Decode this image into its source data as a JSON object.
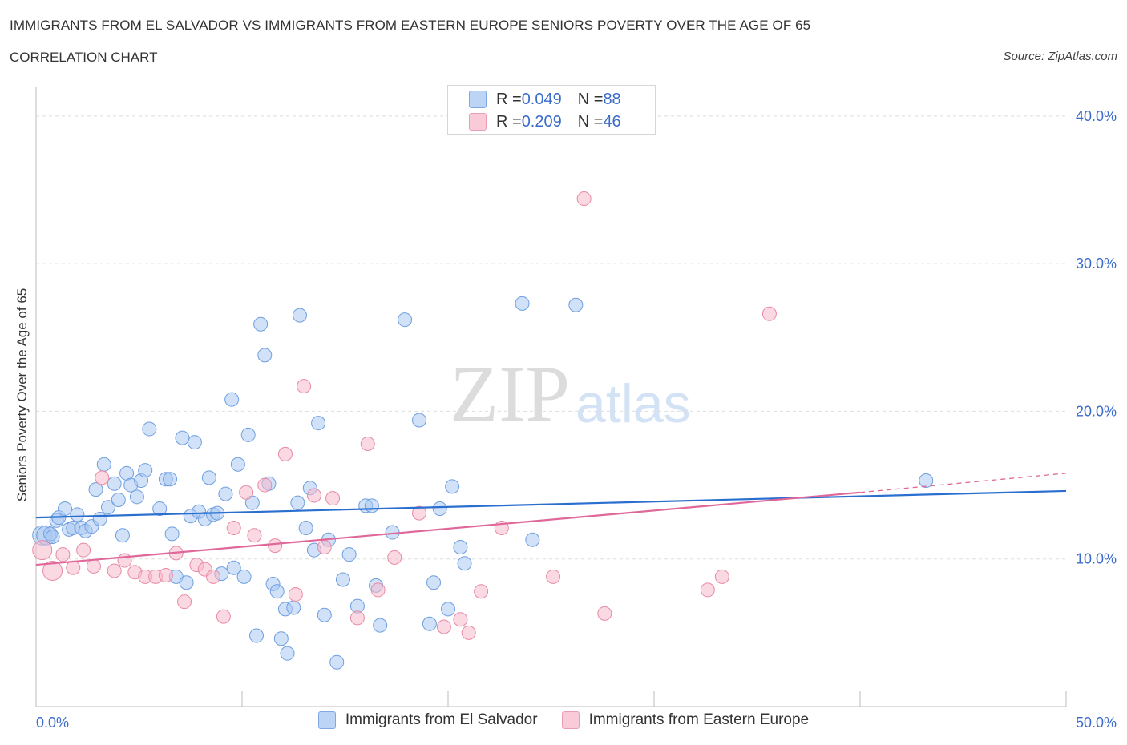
{
  "header": {
    "title": "IMMIGRANTS FROM EL SALVADOR VS IMMIGRANTS FROM EASTERN EUROPE SENIORS POVERTY OVER THE AGE OF 65",
    "subtitle": "CORRELATION CHART",
    "source": "Source: ZipAtlas.com"
  },
  "stats": [
    {
      "r_label": "R = ",
      "r_value": "0.049",
      "n_label": "N = ",
      "n_value": "88",
      "color": "#a9c8f2"
    },
    {
      "r_label": "R = ",
      "r_value": "0.209",
      "n_label": "N = ",
      "n_value": "46",
      "color": "#f5b9cb"
    }
  ],
  "watermark": {
    "zip": "ZIP",
    "atlas": "atlas"
  },
  "chart_data": {
    "type": "scatter",
    "title": "IMMIGRANTS FROM EL SALVADOR VS IMMIGRANTS FROM EASTERN EUROPE SENIORS POVERTY OVER THE AGE OF 65",
    "ylabel": "Seniors Poverty Over the Age of 65",
    "xlim": [
      0,
      50
    ],
    "ylim": [
      0,
      42
    ],
    "x_tick_labels": [
      "0.0%",
      "50.0%"
    ],
    "y_ticks": [
      10,
      20,
      30,
      40
    ],
    "y_tick_labels": [
      "10.0%",
      "20.0%",
      "30.0%",
      "40.0%"
    ],
    "grid": true,
    "legend_placement": "bottom-center",
    "series": [
      {
        "name": "Immigrants from El Salvador",
        "color": "#a9c8f2",
        "stroke": "#6f9fe0",
        "trend": {
          "x": [
            0,
            50
          ],
          "y": [
            12.8,
            14.6
          ],
          "color": "#2a6fd0"
        },
        "points": [
          [
            0.3,
            11.6
          ],
          [
            0.5,
            11.6
          ],
          [
            0.7,
            11.7
          ],
          [
            0.8,
            11.5
          ],
          [
            1.0,
            12.6
          ],
          [
            1.1,
            12.8
          ],
          [
            1.4,
            13.4
          ],
          [
            1.6,
            12.0
          ],
          [
            1.8,
            12.1
          ],
          [
            2.0,
            13.0
          ],
          [
            2.2,
            12.1
          ],
          [
            2.4,
            11.9
          ],
          [
            2.7,
            12.2
          ],
          [
            2.9,
            14.7
          ],
          [
            3.1,
            12.7
          ],
          [
            3.3,
            16.4
          ],
          [
            3.5,
            13.5
          ],
          [
            3.8,
            15.1
          ],
          [
            4.0,
            14.0
          ],
          [
            4.2,
            11.6
          ],
          [
            4.4,
            15.8
          ],
          [
            4.6,
            15.0
          ],
          [
            4.9,
            14.2
          ],
          [
            5.1,
            15.3
          ],
          [
            5.3,
            16.0
          ],
          [
            5.5,
            18.8
          ],
          [
            6.0,
            13.4
          ],
          [
            6.3,
            15.4
          ],
          [
            6.5,
            15.4
          ],
          [
            6.6,
            11.7
          ],
          [
            6.8,
            8.8
          ],
          [
            7.1,
            18.2
          ],
          [
            7.3,
            8.4
          ],
          [
            7.5,
            12.9
          ],
          [
            7.7,
            17.9
          ],
          [
            7.9,
            13.2
          ],
          [
            8.2,
            12.7
          ],
          [
            8.4,
            15.5
          ],
          [
            8.6,
            13.0
          ],
          [
            8.8,
            13.1
          ],
          [
            9.0,
            9.0
          ],
          [
            9.2,
            14.4
          ],
          [
            9.5,
            20.8
          ],
          [
            9.6,
            9.4
          ],
          [
            9.8,
            16.4
          ],
          [
            10.1,
            8.8
          ],
          [
            10.3,
            18.4
          ],
          [
            10.5,
            13.8
          ],
          [
            10.7,
            4.8
          ],
          [
            10.9,
            25.9
          ],
          [
            11.1,
            23.8
          ],
          [
            11.3,
            15.1
          ],
          [
            11.5,
            8.3
          ],
          [
            11.7,
            7.8
          ],
          [
            11.9,
            4.6
          ],
          [
            12.1,
            6.6
          ],
          [
            12.2,
            3.6
          ],
          [
            12.5,
            6.7
          ],
          [
            12.7,
            13.8
          ],
          [
            12.8,
            26.5
          ],
          [
            13.1,
            12.1
          ],
          [
            13.3,
            14.8
          ],
          [
            13.5,
            10.6
          ],
          [
            13.7,
            19.2
          ],
          [
            14.0,
            6.2
          ],
          [
            14.2,
            11.3
          ],
          [
            14.6,
            3.0
          ],
          [
            14.9,
            8.6
          ],
          [
            15.2,
            10.3
          ],
          [
            15.6,
            6.8
          ],
          [
            16.0,
            13.6
          ],
          [
            16.3,
            13.6
          ],
          [
            16.5,
            8.2
          ],
          [
            16.7,
            5.5
          ],
          [
            17.3,
            11.8
          ],
          [
            17.9,
            26.2
          ],
          [
            18.6,
            19.4
          ],
          [
            19.1,
            5.6
          ],
          [
            19.3,
            8.4
          ],
          [
            19.6,
            13.4
          ],
          [
            20.0,
            6.6
          ],
          [
            20.2,
            14.9
          ],
          [
            20.6,
            10.8
          ],
          [
            20.8,
            9.7
          ],
          [
            23.6,
            27.3
          ],
          [
            24.1,
            11.3
          ],
          [
            26.2,
            27.2
          ],
          [
            43.2,
            15.3
          ]
        ]
      },
      {
        "name": "Immigrants from Eastern Europe",
        "color": "#f5b9cb",
        "stroke": "#e88aa6",
        "trend": {
          "x": [
            0,
            40
          ],
          "y": [
            9.6,
            14.5
          ],
          "color": "#e0679a"
        },
        "trend_extension": {
          "x": [
            40,
            50
          ],
          "y": [
            14.5,
            15.8
          ]
        },
        "points": [
          [
            0.3,
            10.6
          ],
          [
            0.8,
            9.2
          ],
          [
            1.3,
            10.3
          ],
          [
            1.8,
            9.4
          ],
          [
            2.3,
            10.6
          ],
          [
            2.8,
            9.5
          ],
          [
            3.2,
            15.5
          ],
          [
            3.8,
            9.2
          ],
          [
            4.3,
            9.9
          ],
          [
            4.8,
            9.1
          ],
          [
            5.3,
            8.8
          ],
          [
            5.8,
            8.8
          ],
          [
            6.3,
            8.9
          ],
          [
            6.8,
            10.4
          ],
          [
            7.2,
            7.1
          ],
          [
            7.8,
            9.6
          ],
          [
            8.2,
            9.3
          ],
          [
            8.6,
            8.8
          ],
          [
            9.1,
            6.1
          ],
          [
            9.6,
            12.1
          ],
          [
            10.2,
            14.5
          ],
          [
            10.6,
            11.6
          ],
          [
            11.1,
            15.0
          ],
          [
            11.6,
            10.9
          ],
          [
            12.1,
            17.1
          ],
          [
            12.6,
            7.6
          ],
          [
            13.0,
            21.7
          ],
          [
            13.5,
            14.3
          ],
          [
            14.0,
            10.8
          ],
          [
            14.4,
            14.1
          ],
          [
            15.6,
            6.0
          ],
          [
            16.1,
            17.8
          ],
          [
            16.6,
            7.9
          ],
          [
            17.4,
            10.1
          ],
          [
            18.6,
            13.1
          ],
          [
            19.8,
            5.4
          ],
          [
            20.6,
            5.9
          ],
          [
            21.0,
            5.0
          ],
          [
            21.6,
            7.8
          ],
          [
            22.6,
            12.1
          ],
          [
            25.1,
            8.8
          ],
          [
            26.6,
            34.4
          ],
          [
            27.6,
            6.3
          ],
          [
            32.6,
            7.9
          ],
          [
            33.3,
            8.8
          ],
          [
            35.6,
            26.6
          ]
        ]
      }
    ]
  }
}
